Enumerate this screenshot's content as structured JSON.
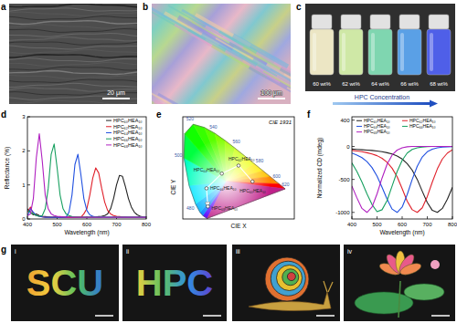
{
  "panels": [
    {
      "label": "a",
      "scale_bar": "20 μm"
    },
    {
      "label": "b",
      "scale_bar": "100 μm"
    },
    {
      "label": "c",
      "vial_labels": [
        "60 wt%",
        "62 wt%",
        "64 wt%",
        "66 wt%",
        "68 wt%"
      ],
      "caption": "HPC Concentration"
    },
    {
      "label": "g",
      "photos": [
        {
          "label": "i",
          "text": "SCU"
        },
        {
          "label": "ii",
          "text": "HPC"
        },
        {
          "label": "iii"
        },
        {
          "label": "iv"
        }
      ]
    }
  ],
  "chart_data": [
    {
      "label": "d",
      "type": "line",
      "x_label": "Wavelength (nm)",
      "y_label": "Reflectance (%)",
      "xlim": [
        400,
        800
      ],
      "ylim": [
        0,
        3
      ],
      "xticks": [
        400,
        500,
        600,
        700,
        800
      ],
      "yticks": [
        0,
        1,
        2,
        3
      ],
      "grid": false,
      "legend": "upper right",
      "x": [
        400,
        410,
        420,
        430,
        440,
        450,
        460,
        470,
        480,
        490,
        500,
        510,
        520,
        530,
        540,
        550,
        560,
        570,
        580,
        590,
        600,
        610,
        620,
        630,
        640,
        650,
        660,
        670,
        680,
        690,
        700,
        710,
        720,
        730,
        740,
        750,
        760,
        770,
        780,
        790,
        800
      ],
      "series": [
        {
          "name": "HPC₆₀HEA₁₀",
          "color": "#222222",
          "values": [
            0.3,
            0.2,
            0.12,
            0.15,
            0.1,
            0.08,
            0.07,
            0.06,
            0.05,
            0.05,
            0.05,
            0.05,
            0.05,
            0.05,
            0.05,
            0.05,
            0.05,
            0.05,
            0.05,
            0.05,
            0.05,
            0.05,
            0.05,
            0.06,
            0.07,
            0.08,
            0.1,
            0.15,
            0.3,
            0.6,
            1.0,
            1.28,
            1.25,
            0.95,
            0.6,
            0.35,
            0.2,
            0.12,
            0.08,
            0.06,
            0.05
          ]
        },
        {
          "name": "HPC₆₂HEA₁₀",
          "color": "#e0202a",
          "values": [
            0.2,
            0.35,
            0.15,
            0.1,
            0.08,
            0.06,
            0.05,
            0.05,
            0.05,
            0.05,
            0.05,
            0.05,
            0.05,
            0.05,
            0.05,
            0.05,
            0.05,
            0.05,
            0.05,
            0.15,
            0.3,
            0.7,
            1.2,
            1.5,
            1.35,
            0.9,
            0.5,
            0.25,
            0.15,
            0.1,
            0.08,
            0.07,
            0.06,
            0.06,
            0.05,
            0.05,
            0.05,
            0.05,
            0.05,
            0.05,
            0.05
          ]
        },
        {
          "name": "HPC₆₄HEA₁₀",
          "color": "#2050e0",
          "values": [
            0.1,
            0.3,
            0.2,
            0.1,
            0.08,
            0.06,
            0.05,
            0.05,
            0.05,
            0.05,
            0.05,
            0.05,
            0.05,
            0.05,
            0.2,
            0.7,
            1.6,
            1.9,
            1.3,
            0.6,
            0.25,
            0.12,
            0.08,
            0.06,
            0.05,
            0.05,
            0.05,
            0.05,
            0.05,
            0.05,
            0.05,
            0.05,
            0.05,
            0.05,
            0.05,
            0.05,
            0.05,
            0.05,
            0.05,
            0.05,
            0.05
          ]
        },
        {
          "name": "HPC₆₆HEA₁₀",
          "color": "#18a060",
          "values": [
            0.25,
            0.2,
            0.15,
            0.1,
            0.08,
            0.1,
            0.3,
            0.9,
            1.9,
            2.2,
            1.5,
            0.7,
            0.3,
            0.15,
            0.1,
            0.07,
            0.06,
            0.05,
            0.05,
            0.05,
            0.05,
            0.05,
            0.05,
            0.05,
            0.05,
            0.05,
            0.05,
            0.05,
            0.05,
            0.05,
            0.05,
            0.05,
            0.05,
            0.05,
            0.05,
            0.05,
            0.05,
            0.05,
            0.05,
            0.05,
            0.05
          ]
        },
        {
          "name": "HPC₆₈HEA₁₀",
          "color": "#b020c0",
          "values": [
            0.1,
            0.15,
            0.6,
            1.8,
            2.5,
            1.7,
            0.7,
            0.3,
            0.15,
            0.1,
            0.08,
            0.07,
            0.06,
            0.05,
            0.05,
            0.05,
            0.05,
            0.05,
            0.05,
            0.05,
            0.05,
            0.05,
            0.05,
            0.05,
            0.05,
            0.05,
            0.05,
            0.05,
            0.05,
            0.05,
            0.05,
            0.05,
            0.05,
            0.05,
            0.05,
            0.05,
            0.05,
            0.05,
            0.05,
            0.05,
            0.05
          ]
        }
      ]
    },
    {
      "label": "e",
      "type": "cie",
      "title": "CIE 1931",
      "x_label": "CIE X",
      "y_label": "CIE Y",
      "xlim": [
        0,
        0.8
      ],
      "ylim": [
        0,
        0.9
      ],
      "tick_labels": false,
      "point_labels": [
        "HPC₆₀HEA₁₀",
        "HPC₆₂HEA₁₀",
        "HPC₆₄HEA₁₀",
        "HPC₆₆HEA₁₀",
        "HPC₆₈HEA₁₀"
      ],
      "x": [
        0.5,
        0.4,
        0.28,
        0.17,
        0.18
      ],
      "values": [
        0.33,
        0.47,
        0.4,
        0.27,
        0.11
      ],
      "locus": {
        "wavelengths": [
          380,
          460,
          470,
          480,
          490,
          500,
          510,
          520,
          530,
          540,
          550,
          560,
          570,
          580,
          590,
          600,
          620,
          700
        ],
        "x": [
          0.1741,
          0.144,
          0.1241,
          0.0913,
          0.0454,
          0.0082,
          0.0139,
          0.0743,
          0.1547,
          0.2296,
          0.3016,
          0.3731,
          0.4441,
          0.5125,
          0.5752,
          0.627,
          0.6915,
          0.7347
        ],
        "y": [
          0.005,
          0.0297,
          0.0578,
          0.1327,
          0.295,
          0.5384,
          0.7502,
          0.8338,
          0.8059,
          0.7543,
          0.6923,
          0.6245,
          0.5547,
          0.4866,
          0.4242,
          0.3725,
          0.3083,
          0.2653
        ],
        "labels": [
          null,
          null,
          null,
          480,
          null,
          500,
          null,
          520,
          null,
          540,
          null,
          560,
          null,
          580,
          null,
          600,
          620,
          null
        ]
      }
    },
    {
      "label": "f",
      "type": "line",
      "x_label": "Wavelength (nm)",
      "y_label": "Normalized CD (mdeg)",
      "xlim": [
        400,
        800
      ],
      "ylim": [
        -1100,
        450
      ],
      "xticks": [
        400,
        500,
        600,
        700,
        800
      ],
      "yticks": [
        -1000,
        -500,
        0,
        400
      ],
      "grid": false,
      "legend": "upper center",
      "x": [
        400,
        420,
        440,
        460,
        480,
        500,
        520,
        540,
        560,
        580,
        600,
        620,
        640,
        660,
        680,
        700,
        720,
        740,
        760,
        780,
        800
      ],
      "series": [
        {
          "name": "HPC₆₀HEA₁₀",
          "color": "#222222",
          "values": [
            -40,
            -45,
            -50,
            -55,
            -60,
            -70,
            -80,
            -95,
            -115,
            -145,
            -190,
            -260,
            -360,
            -500,
            -680,
            -850,
            -970,
            -1000,
            -940,
            -800,
            -620
          ]
        },
        {
          "name": "HPC₆₂HEA₁₀",
          "color": "#e0202a",
          "values": [
            -60,
            -70,
            -80,
            -95,
            -115,
            -140,
            -180,
            -240,
            -330,
            -460,
            -640,
            -830,
            -960,
            -1000,
            -930,
            -760,
            -540,
            -340,
            -190,
            -100,
            -50
          ]
        },
        {
          "name": "HPC₆₄HEA₁₀",
          "color": "#2050e0",
          "values": [
            -100,
            -130,
            -170,
            -230,
            -320,
            -450,
            -620,
            -800,
            -950,
            -1000,
            -920,
            -730,
            -500,
            -300,
            -160,
            -80,
            -40,
            -20,
            -10,
            -5,
            -2
          ]
        },
        {
          "name": "HPC₆₆HEA₁₀",
          "color": "#18a060",
          "values": [
            -250,
            -380,
            -540,
            -720,
            -880,
            -990,
            -960,
            -820,
            -600,
            -380,
            -210,
            -100,
            -45,
            -20,
            -8,
            -3,
            0,
            0,
            0,
            0,
            0
          ]
        },
        {
          "name": "HPC₆₈HEA₁₀",
          "color": "#b020c0",
          "values": [
            -600,
            -780,
            -940,
            -1000,
            -920,
            -720,
            -480,
            -270,
            -130,
            -55,
            -20,
            -5,
            0,
            0,
            0,
            0,
            0,
            0,
            0,
            0,
            0
          ]
        }
      ]
    }
  ]
}
